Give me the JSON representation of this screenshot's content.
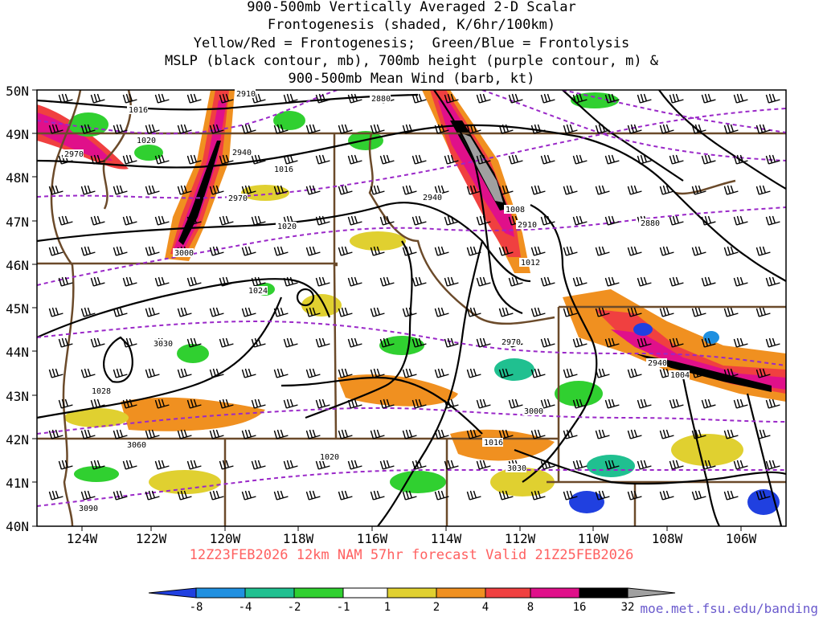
{
  "title_lines": [
    "900-500mb Vertically Averaged 2-D Scalar",
    "Frontogenesis (shaded, K/6hr/100km)",
    "Yellow/Red = Frontogenesis;  Green/Blue = Frontolysis",
    "MSLP (black contour, mb), 700mb height (purple contour, m) &",
    "900-500mb Mean Wind (barb, kt)"
  ],
  "forecast_label": "12Z23FEB2026 12km NAM 57hr forecast Valid 21Z25FEB2026",
  "credit": "moe.met.fsu.edu/banding",
  "lat_labels": [
    "50N",
    "49N",
    "48N",
    "47N",
    "46N",
    "45N",
    "44N",
    "43N",
    "42N",
    "41N",
    "40N"
  ],
  "lon_labels": [
    "124W",
    "122W",
    "120W",
    "118W",
    "116W",
    "114W",
    "112W",
    "110W",
    "108W",
    "106W"
  ],
  "colorbar": {
    "ticks": [
      "-8",
      "-4",
      "-2",
      "-1",
      "1",
      "2",
      "4",
      "8",
      "16",
      "32"
    ],
    "colors": [
      "#2040e0",
      "#2090e0",
      "#20c090",
      "#30d030",
      "#ffffff",
      "#e0d030",
      "#f09020",
      "#f04040",
      "#e0108a",
      "#000000",
      "#a0a0a0"
    ]
  },
  "mslp_labels": [
    "1016",
    "1020",
    "1016",
    "1020",
    "1024",
    "1028",
    "1008",
    "1012",
    "1004",
    "1016",
    "1020"
  ],
  "height_labels": [
    "2910",
    "2970",
    "2940",
    "2970",
    "3000",
    "3030",
    "3060",
    "3090",
    "2880",
    "2940",
    "2910",
    "2880",
    "2970",
    "2940",
    "3000",
    "3030"
  ],
  "colors": {
    "map_border": "#6b4a2a",
    "mslp": "#000000",
    "height": "#9a28c8",
    "footer": "#ff6060",
    "credit": "#6a5acd"
  }
}
